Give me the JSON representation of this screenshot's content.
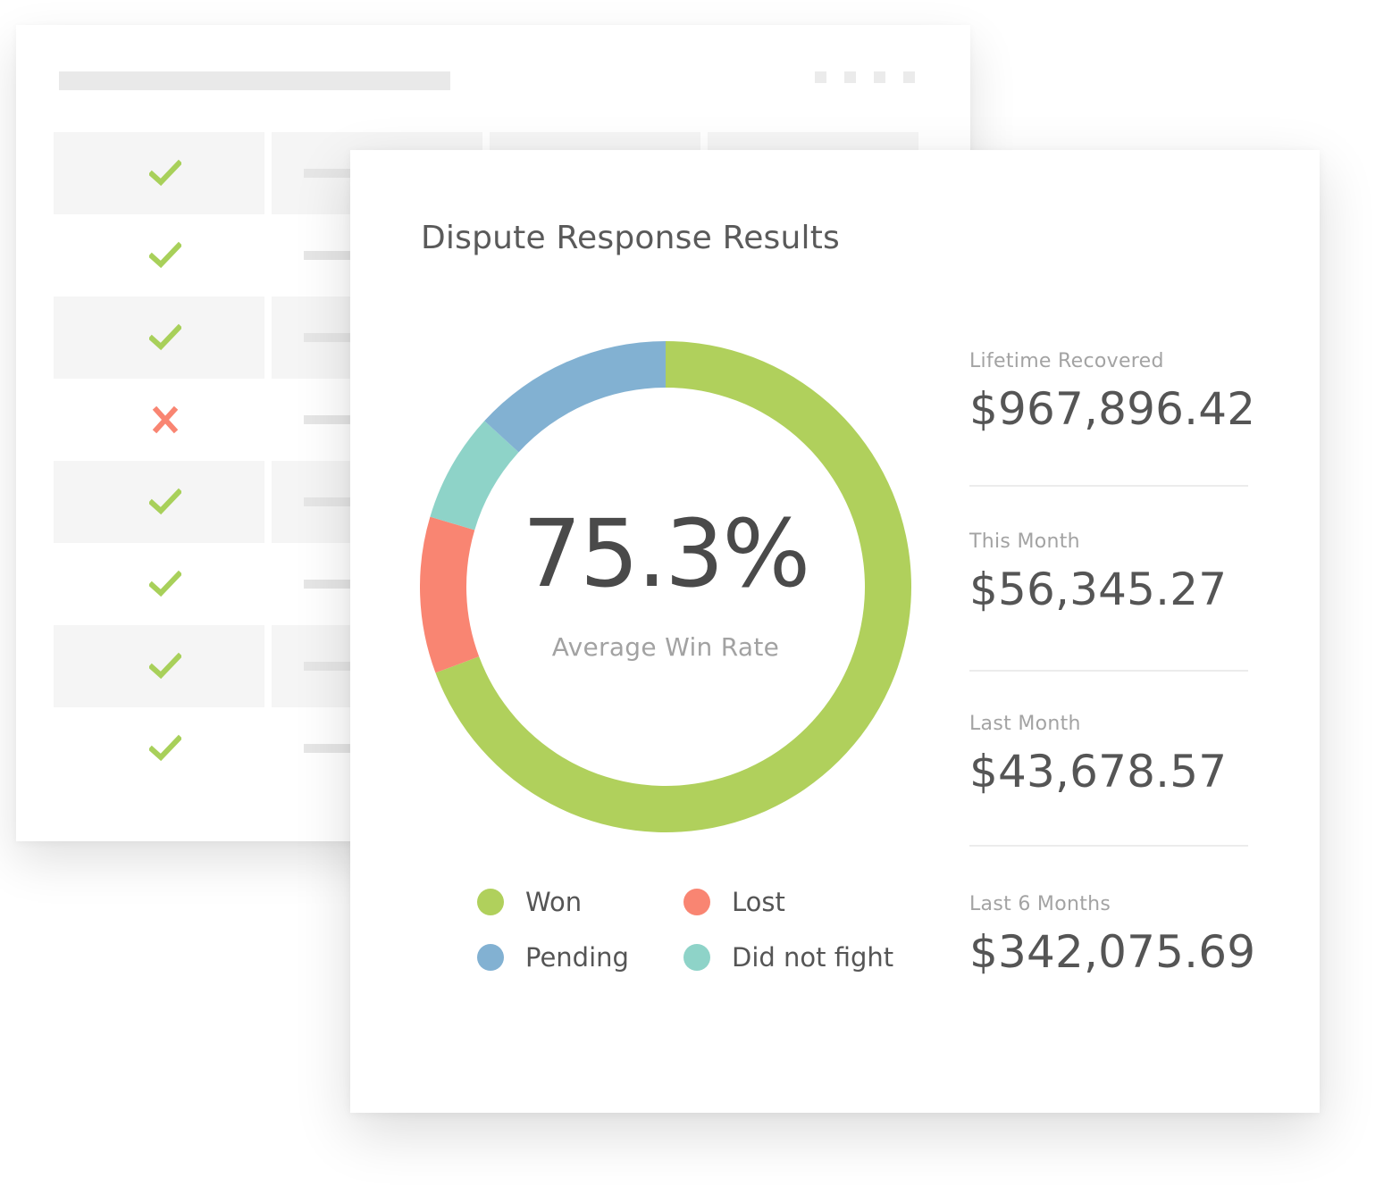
{
  "card": {
    "title": "Dispute Response Results"
  },
  "chart_data": {
    "type": "pie",
    "categories": [
      "Won",
      "Lost",
      "Did not fight",
      "Pending"
    ],
    "values": [
      69.3,
      10.3,
      7.2,
      13.2
    ],
    "center_value": "75.3%",
    "center_label": "Average Win Rate",
    "colors": {
      "Won": "#b0d05c",
      "Lost": "#f98572",
      "Did not fight": "#8ed3c8",
      "Pending": "#82b1d2"
    }
  },
  "legend": [
    {
      "label": "Won",
      "color": "#b0d05c"
    },
    {
      "label": "Lost",
      "color": "#f98572"
    },
    {
      "label": "Pending",
      "color": "#82b1d2"
    },
    {
      "label": "Did not fight",
      "color": "#8ed3c8"
    }
  ],
  "stats": [
    {
      "label": "Lifetime Recovered",
      "value": "$967,896.42"
    },
    {
      "label": "This Month",
      "value": "$56,345.27"
    },
    {
      "label": "Last Month",
      "value": "$43,678.57"
    },
    {
      "label": "Last 6 Months",
      "value": "$342,075.69"
    }
  ],
  "background_table": {
    "rows": [
      {
        "status": "check-icon"
      },
      {
        "status": "check-icon"
      },
      {
        "status": "check-icon"
      },
      {
        "status": "cross-icon"
      },
      {
        "status": "check-icon"
      },
      {
        "status": "check-icon"
      },
      {
        "status": "check-icon"
      },
      {
        "status": "check-icon"
      }
    ],
    "colors": {
      "check": "#a8d05a",
      "cross": "#f98572"
    }
  }
}
